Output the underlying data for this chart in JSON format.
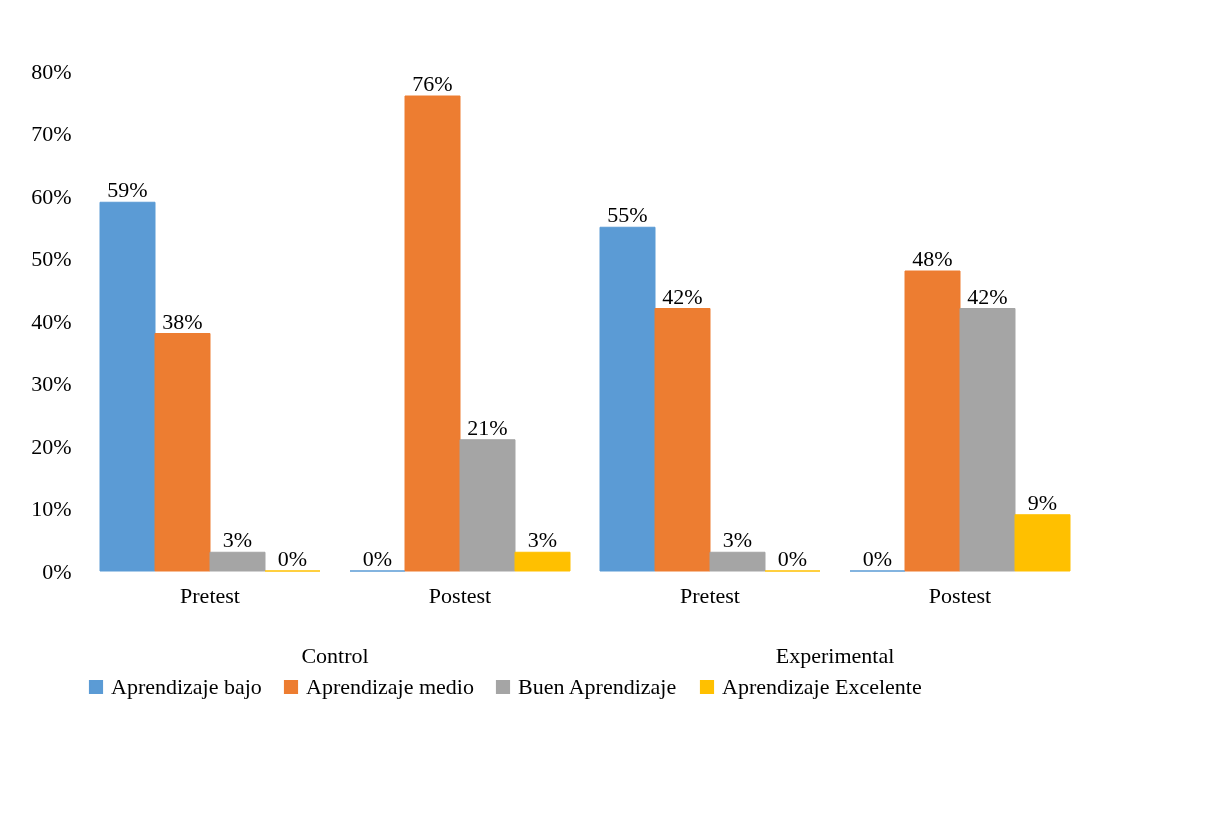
{
  "chart_data": {
    "type": "bar",
    "categories": [
      "Pretest",
      "Postest",
      "Pretest",
      "Postest"
    ],
    "series": [
      {
        "name": "Aprendizaje bajo",
        "color": "#5b9bd5",
        "values": [
          59,
          0,
          55,
          0
        ],
        "value_labels": [
          "59%",
          "0%",
          "55%",
          "0%"
        ]
      },
      {
        "name": "Aprendizaje medio",
        "color": "#ed7d31",
        "values": [
          38,
          76,
          42,
          48
        ],
        "value_labels": [
          "38%",
          "76%",
          "42%",
          "48%"
        ]
      },
      {
        "name": "Buen Aprendizaje",
        "color": "#a5a5a5",
        "values": [
          3,
          21,
          3,
          42
        ],
        "value_labels": [
          "3%",
          "21%",
          "3%",
          "42%"
        ]
      },
      {
        "name": "Aprendizaje Excelente",
        "color": "#ffc000",
        "values": [
          0,
          3,
          0,
          9
        ],
        "value_labels": [
          "0%",
          "3%",
          "0%",
          "9%"
        ]
      }
    ],
    "ylim": [
      0,
      80
    ],
    "yticks": [
      {
        "value": 0,
        "label": "0%"
      },
      {
        "value": 10,
        "label": "10%"
      },
      {
        "value": 20,
        "label": "20%"
      },
      {
        "value": 30,
        "label": "30%"
      },
      {
        "value": 40,
        "label": "40%"
      },
      {
        "value": 50,
        "label": "50%"
      },
      {
        "value": 60,
        "label": "60%"
      },
      {
        "value": 70,
        "label": "70%"
      },
      {
        "value": 80,
        "label": "80%"
      }
    ],
    "annotations": [
      "Control",
      "Experimental"
    ],
    "grid": false,
    "legend": "bottom"
  }
}
